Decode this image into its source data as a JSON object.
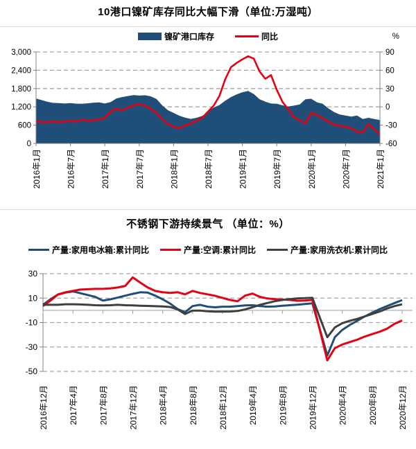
{
  "colors": {
    "navy": "#1f4e79",
    "red": "#e60012",
    "dark": "#3f3f3f",
    "grid": "#a6a6a6",
    "axis": "#808080"
  },
  "chart_data": [
    {
      "type": "area",
      "title": "10港口镍矿库存同比大幅下滑（单位:万湿吨）",
      "x_tick_labels": [
        "2016年1月",
        "2016年7月",
        "2017年1月",
        "2017年7月",
        "2018年1月",
        "2018年7月",
        "2019年1月",
        "2019年7月",
        "2020年1月",
        "2020年7月",
        "2021年1月"
      ],
      "x_frequency": "monthly",
      "left_axis": {
        "min": 0,
        "max": 3000,
        "tick_values": [
          0,
          600,
          1200,
          1800,
          2400,
          3000
        ],
        "tick_labels": [
          "0",
          "600",
          "1,200",
          "1,800",
          "2,400",
          "3,000"
        ]
      },
      "right_axis": {
        "unit": "%",
        "min": -60,
        "max": 90,
        "tick_values": [
          -60,
          -30,
          0,
          30,
          60,
          90
        ],
        "tick_labels": [
          "-60",
          "-30",
          "0",
          "30",
          "60",
          "90"
        ]
      },
      "grid": "dashed-horizontal",
      "legend_position": "top-center",
      "series": [
        {
          "name": "镍矿港口库存",
          "type": "area",
          "axis": "left",
          "color": "#1f4e79",
          "values": [
            1470,
            1420,
            1365,
            1330,
            1325,
            1310,
            1325,
            1305,
            1300,
            1315,
            1335,
            1345,
            1310,
            1355,
            1470,
            1520,
            1555,
            1585,
            1570,
            1580,
            1545,
            1460,
            1250,
            1090,
            1000,
            910,
            845,
            805,
            840,
            905,
            1040,
            1180,
            1260,
            1400,
            1520,
            1610,
            1680,
            1720,
            1620,
            1450,
            1370,
            1310,
            1300,
            1250,
            1210,
            1240,
            1280,
            1450,
            1465,
            1350,
            1300,
            1150,
            1030,
            950,
            915,
            880,
            915,
            800,
            840,
            800,
            765
          ]
        },
        {
          "name": "同比",
          "type": "line",
          "axis": "right",
          "color": "#e60012",
          "values": [
            -23,
            -25,
            -25,
            -24,
            -25,
            -24,
            -23,
            -24,
            -21,
            -23,
            -22,
            -21,
            -18,
            -8,
            -3,
            -6,
            -1,
            2,
            4.5,
            2,
            -3,
            -10,
            -20,
            -28,
            -33,
            -35,
            -31,
            -27,
            -23,
            -18,
            -8,
            2,
            18,
            45,
            65,
            72,
            78,
            83,
            79,
            58,
            46,
            52,
            28,
            8,
            -4,
            -17,
            -22,
            -27,
            -10,
            -13,
            -19,
            -24,
            -29,
            -31,
            -33,
            -35,
            -41,
            -42,
            -28,
            -37,
            -45
          ]
        }
      ]
    },
    {
      "type": "line",
      "title": "不锈钢下游持续景气 （单位：%）",
      "x_tick_labels": [
        "2016年12月",
        "2017年4月",
        "2017年8月",
        "2017年12月",
        "2018年4月",
        "2018年8月",
        "2018年12月",
        "2019年4月",
        "2019年8月",
        "2019年12月",
        "2020年4月",
        "2020年8月",
        "2020年12月"
      ],
      "x_frequency": "monthly",
      "left_axis": {
        "min": -50,
        "max": 30,
        "tick_values": [
          30,
          10,
          -10,
          -30,
          -50
        ],
        "tick_labels": [
          "30",
          "10",
          "-10",
          "-30",
          "-50"
        ]
      },
      "grid": "dashed-horizontal",
      "legend_position": "top-center",
      "series": [
        {
          "name": "产量:家用电冰箱:累计同比",
          "type": "line",
          "color": "#1f4e79",
          "values": [
            4.6,
            9,
            13,
            14.5,
            15.5,
            14,
            12.5,
            11,
            8,
            9,
            10.5,
            12,
            13.5,
            14.8,
            14.5,
            12,
            9,
            5.5,
            1,
            -1.5,
            3.5,
            4.5,
            3,
            2.5,
            3,
            3,
            3.5,
            4,
            4.2,
            3.5,
            3,
            3.2,
            3.8,
            4.2,
            4.6,
            5.2,
            5.8,
            -15.5,
            -37,
            -22,
            -16,
            -12,
            -8.5,
            -5,
            -2,
            1,
            3.5,
            6,
            8.4
          ]
        },
        {
          "name": "产量:空调:累计同比",
          "type": "line",
          "color": "#e60012",
          "values": [
            3.5,
            8,
            13,
            14.8,
            15.9,
            17,
            17.3,
            17.6,
            17.6,
            18,
            18.7,
            20,
            27,
            22.7,
            18.7,
            15.9,
            14.8,
            14.2,
            14.8,
            13.1,
            15.9,
            14.2,
            13.1,
            11.9,
            10.2,
            8.5,
            7.4,
            12,
            13.7,
            11,
            9.7,
            9.1,
            8.8,
            8.5,
            7.8,
            8,
            8.5,
            -16,
            -41,
            -31,
            -28,
            -26,
            -24,
            -21.5,
            -19.5,
            -17.5,
            -15,
            -11,
            -8.3
          ]
        },
        {
          "name": "产量:家用洗衣机:累计同比",
          "type": "line",
          "color": "#3f3f3f",
          "values": [
            4.5,
            4.5,
            4.5,
            5,
            5,
            4.8,
            4.5,
            4.2,
            4,
            4.2,
            4.5,
            4.2,
            4,
            3.8,
            3.6,
            3.4,
            3.2,
            2.7,
            0.7,
            -3,
            -0.2,
            -0.2,
            -0.8,
            -1.1,
            -1.1,
            -1,
            -0.5,
            0.7,
            2.5,
            4.5,
            6,
            7.5,
            8.5,
            9.2,
            9.8,
            10,
            10.3,
            -6,
            -22,
            -14,
            -10.5,
            -8.5,
            -7,
            -5,
            -3,
            -1,
            1.5,
            3.5,
            4.9
          ]
        }
      ]
    }
  ]
}
